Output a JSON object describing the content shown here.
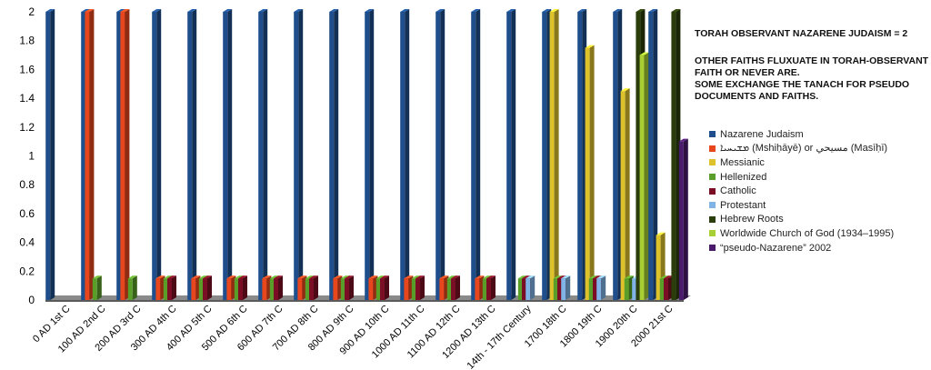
{
  "chart_data": {
    "type": "bar",
    "title": "",
    "xlabel": "",
    "ylabel": "",
    "ylim": [
      0,
      2
    ],
    "yticks": [
      "0",
      "0.2",
      "0.4",
      "0.6",
      "0.8",
      "1",
      "1.2",
      "1.4",
      "1.6",
      "1.8",
      "2"
    ],
    "grid": false,
    "legend_position": "right",
    "three_d": true,
    "categories": [
      "0 AD 1st C",
      "100 AD 2nd C",
      "200 AD 3rd C",
      "300 AD 4th C",
      "400 AD 5th C",
      "500 AD 6th C",
      "600 AD 7th C",
      "700 AD 8th C",
      "800 AD 9th C",
      "900 AD 10th C",
      "1000 AD 11th C",
      "1100 AD 12th C",
      "1200 AD 13th C",
      "14th - 17th Century",
      "1700 18th C",
      "1800 19th C",
      "1900 20th C",
      "2000 21st C"
    ],
    "series": [
      {
        "name": "Nazarene Judaism",
        "color": "#1f4e8c",
        "values": [
          2,
          2,
          2,
          2,
          2,
          2,
          2,
          2,
          2,
          2,
          2,
          2,
          2,
          2,
          2,
          2,
          2,
          2
        ]
      },
      {
        "name": "ܡܫܝܚܝܐ (Mshiḥāyē) or مسيحي (Masīḥī)",
        "color": "#e8471d",
        "values": [
          0,
          2,
          2,
          0.15,
          0.15,
          0.15,
          0.15,
          0.15,
          0.15,
          0.15,
          0.15,
          0.15,
          0.15,
          0,
          0,
          0,
          0,
          0
        ]
      },
      {
        "name": "Messianic",
        "color": "#ddc22c",
        "values": [
          0,
          0,
          0,
          0,
          0,
          0,
          0,
          0,
          0,
          0,
          0,
          0,
          0,
          0,
          2,
          1.75,
          1.45,
          0.45
        ]
      },
      {
        "name": "Hellenized",
        "color": "#5a9e2a",
        "values": [
          0,
          0.15,
          0.15,
          0.15,
          0.15,
          0.15,
          0.15,
          0.15,
          0.15,
          0.15,
          0.15,
          0.15,
          0.15,
          0.15,
          0.15,
          0.15,
          0.15,
          0.15
        ]
      },
      {
        "name": "Catholic",
        "color": "#7a0e24",
        "values": [
          0,
          0,
          0,
          0.15,
          0.15,
          0.15,
          0.15,
          0.15,
          0.15,
          0.15,
          0.15,
          0.15,
          0.15,
          0.15,
          0.15,
          0.15,
          0,
          0.15
        ]
      },
      {
        "name": "Protestant",
        "color": "#80b4e6",
        "values": [
          0,
          0,
          0,
          0,
          0,
          0,
          0,
          0,
          0,
          0,
          0,
          0,
          0,
          0.15,
          0.15,
          0.15,
          0.15,
          0
        ]
      },
      {
        "name": "Hebrew Roots",
        "color": "#2b3d0a",
        "values": [
          0,
          0,
          0,
          0,
          0,
          0,
          0,
          0,
          0,
          0,
          0,
          0,
          0,
          0,
          0,
          0,
          2,
          2
        ]
      },
      {
        "name": "Worldwide Church of God (1934–1995)",
        "color": "#a8d034",
        "values": [
          0,
          0,
          0,
          0,
          0,
          0,
          0,
          0,
          0,
          0,
          0,
          0,
          0,
          0,
          0,
          0,
          1.7,
          0
        ]
      },
      {
        "name": "“pseudo-Nazarene” 2002",
        "color": "#4a1a6c",
        "values": [
          0,
          0,
          0,
          0,
          0,
          0,
          0,
          0,
          0,
          0,
          0,
          0,
          0,
          0,
          0,
          0,
          0,
          1.1
        ]
      }
    ],
    "annotations": [
      "TORAH OBSERVANT NAZARENE JUDAISM = 2",
      "OTHER FAITHS FLUXUATE IN TORAH-OBSERVANT\nFAITH OR NEVER ARE.\nSOME EXCHANGE THE TANACH FOR PSEUDO\nDOCUMENTS AND FAITHS."
    ]
  }
}
